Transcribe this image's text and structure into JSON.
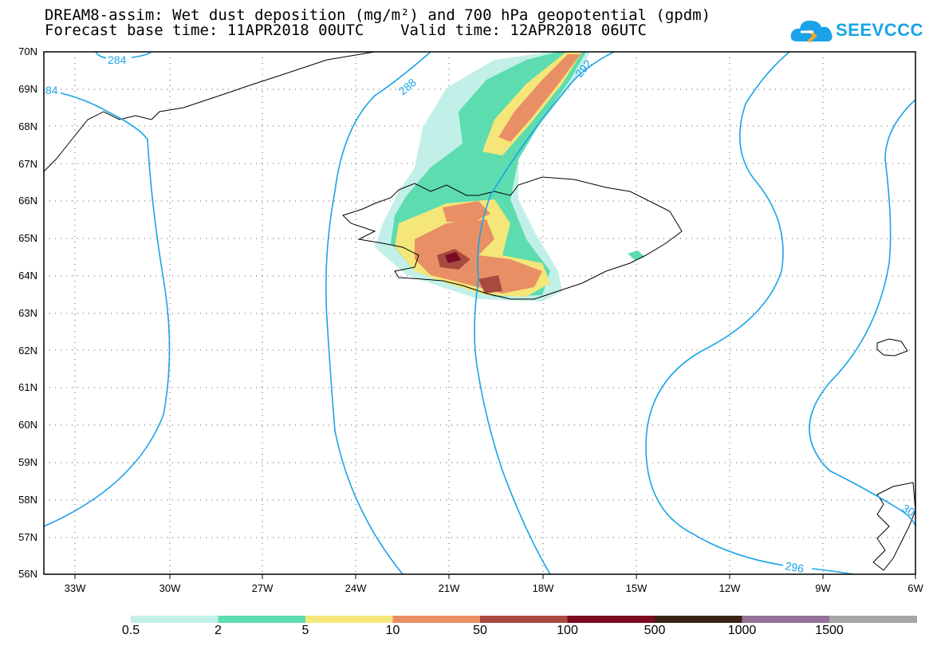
{
  "title": {
    "line1": "DREAM8-assim: Wet dust deposition (mg/m²) and 700 hPa geopotential (gpdm)",
    "line2": "Forecast base time: 11APR2018 00UTC    Valid time: 12APR2018 06UTC"
  },
  "logo": {
    "text": "SEEVCCC"
  },
  "axes": {
    "lat_labels": [
      "70N",
      "69N",
      "68N",
      "67N",
      "66N",
      "65N",
      "64N",
      "63N",
      "62N",
      "61N",
      "60N",
      "59N",
      "58N",
      "57N",
      "56N"
    ],
    "lon_labels": [
      "33W",
      "30W",
      "27W",
      "24W",
      "21W",
      "18W",
      "15W",
      "12W",
      "9W",
      "6W"
    ],
    "lat_range": [
      56,
      70
    ],
    "lon_range": [
      -34.2,
      -6
    ],
    "grid": "dotted"
  },
  "contours": {
    "color": "#1aa3e8",
    "labels": [
      "284",
      "84",
      "288",
      "292",
      "296",
      "30"
    ]
  },
  "legend": {
    "labels": [
      "0.5",
      "2",
      "5",
      "10",
      "50",
      "100",
      "500",
      "1000",
      "1500"
    ],
    "colors": [
      "#c2f0e8",
      "#5ddcb0",
      "#f5e67a",
      "#e98f65",
      "#a84a3f",
      "#7a0b22",
      "#3a2316",
      "#957097",
      "#a6a6a6"
    ]
  }
}
